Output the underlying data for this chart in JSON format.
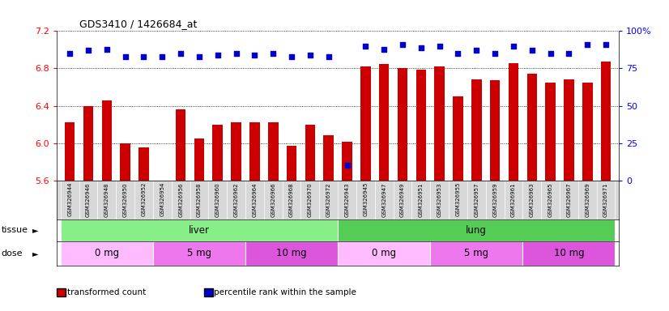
{
  "title": "GDS3410 / 1426684_at",
  "samples": [
    "GSM326944",
    "GSM326946",
    "GSM326948",
    "GSM326950",
    "GSM326952",
    "GSM326954",
    "GSM326956",
    "GSM326958",
    "GSM326960",
    "GSM326962",
    "GSM326964",
    "GSM326966",
    "GSM326968",
    "GSM326970",
    "GSM326972",
    "GSM326943",
    "GSM326945",
    "GSM326947",
    "GSM326949",
    "GSM326951",
    "GSM326953",
    "GSM326955",
    "GSM326957",
    "GSM326959",
    "GSM326961",
    "GSM326963",
    "GSM326965",
    "GSM326967",
    "GSM326969",
    "GSM326971"
  ],
  "bar_values": [
    6.22,
    6.4,
    6.46,
    6.0,
    5.95,
    5.57,
    6.36,
    6.05,
    6.2,
    6.22,
    6.22,
    6.22,
    5.97,
    6.2,
    6.08,
    6.01,
    6.82,
    6.85,
    6.8,
    6.79,
    6.82,
    6.5,
    6.68,
    6.67,
    6.86,
    6.74,
    6.65,
    6.68,
    6.65,
    6.87
  ],
  "percentile_ranks": [
    85,
    87,
    88,
    83,
    83,
    83,
    85,
    83,
    84,
    85,
    84,
    85,
    83,
    84,
    83,
    10,
    90,
    88,
    91,
    89,
    90,
    85,
    87,
    85,
    90,
    87,
    85,
    85,
    91,
    91
  ],
  "ylim_left": [
    5.6,
    7.2
  ],
  "yticks_left": [
    5.6,
    6.0,
    6.4,
    6.8,
    7.2
  ],
  "ylim_right": [
    0,
    100
  ],
  "yticks_right": [
    0,
    25,
    50,
    75,
    100
  ],
  "bar_color": "#cc0000",
  "dot_color": "#0000cc",
  "bar_width": 0.55,
  "tissue_groups": [
    {
      "label": "liver",
      "start": 0,
      "end": 15,
      "color": "#88ee88"
    },
    {
      "label": "lung",
      "start": 15,
      "end": 30,
      "color": "#55cc55"
    }
  ],
  "dose_groups": [
    {
      "label": "0 mg",
      "start": 0,
      "end": 5,
      "color": "#ffbbff"
    },
    {
      "label": "5 mg",
      "start": 5,
      "end": 10,
      "color": "#ee77ee"
    },
    {
      "label": "10 mg",
      "start": 10,
      "end": 15,
      "color": "#dd55dd"
    },
    {
      "label": "0 mg",
      "start": 15,
      "end": 20,
      "color": "#ffbbff"
    },
    {
      "label": "5 mg",
      "start": 20,
      "end": 25,
      "color": "#ee77ee"
    },
    {
      "label": "10 mg",
      "start": 25,
      "end": 30,
      "color": "#dd55dd"
    }
  ],
  "legend_items": [
    {
      "label": "transformed count",
      "color": "#cc0000"
    },
    {
      "label": "percentile rank within the sample",
      "color": "#0000cc"
    }
  ],
  "xlabel_tissue": "tissue",
  "xlabel_dose": "dose",
  "tick_bg_color": "#d8d8d8",
  "plot_bg": "#ffffff"
}
